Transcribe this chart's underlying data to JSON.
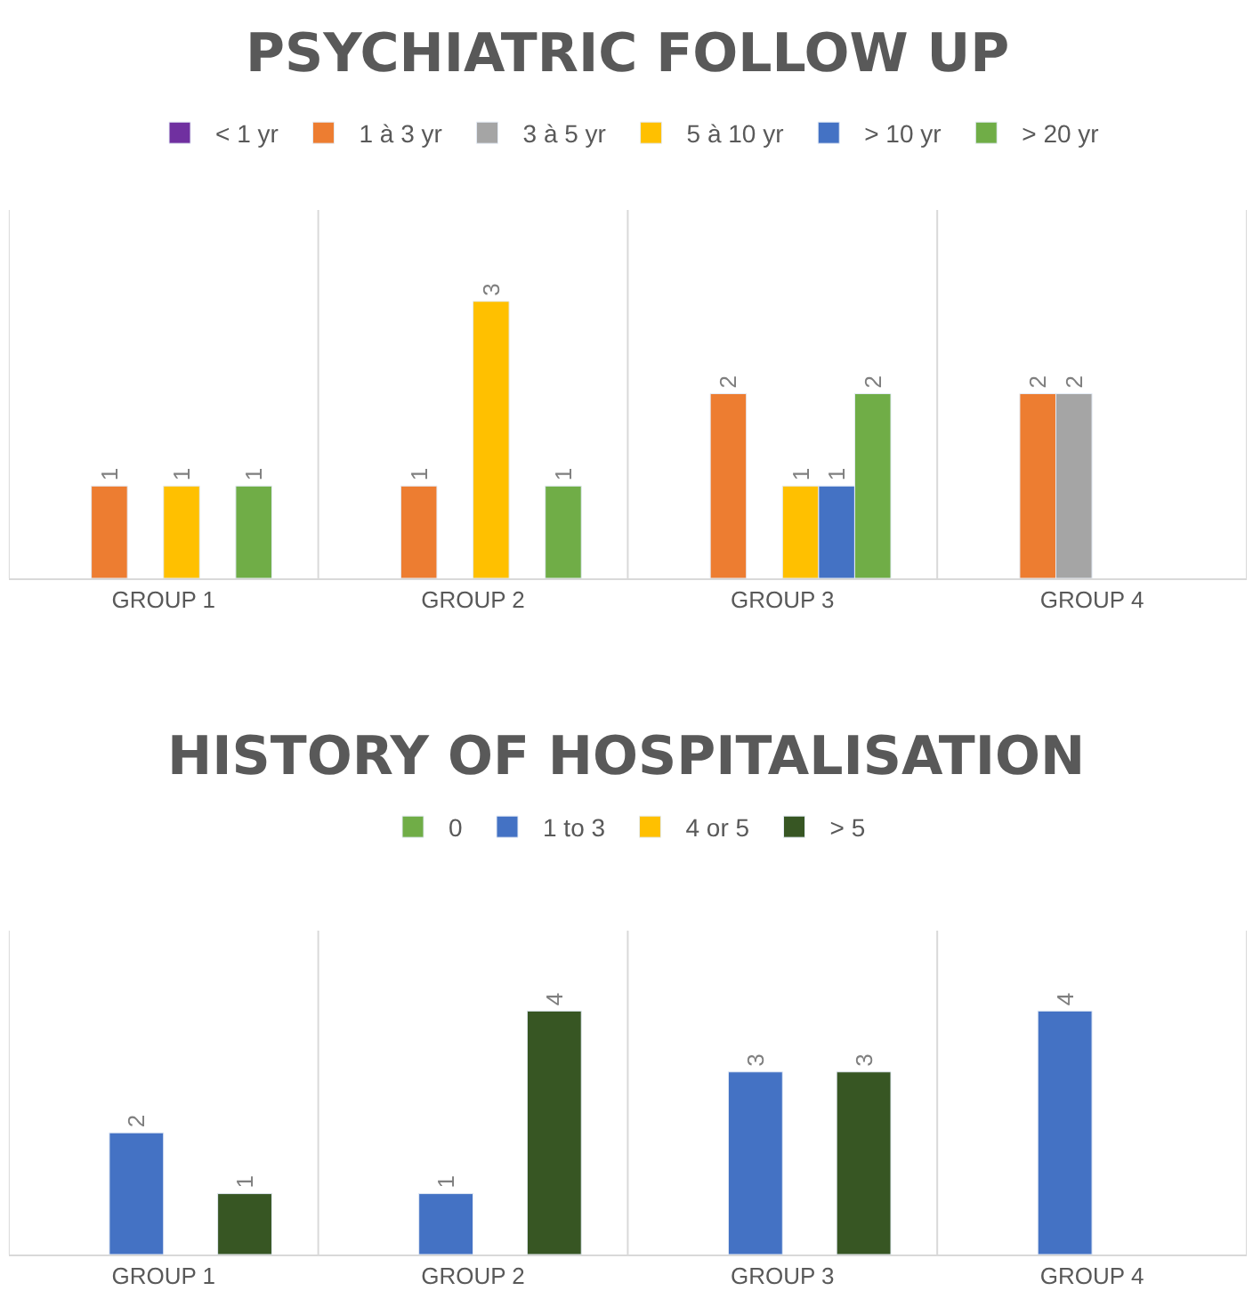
{
  "chart_data": [
    {
      "type": "bar",
      "title": "PSYCHIATRIC FOLLOW UP",
      "categories": [
        "GROUP 1",
        "GROUP 2",
        "GROUP 3",
        "GROUP 4"
      ],
      "data_labels": true,
      "grid": "x",
      "legend": "top",
      "series": [
        {
          "name": "< 1 yr",
          "color": "#7030a0",
          "values": [
            null,
            null,
            null,
            null
          ]
        },
        {
          "name": "1 à 3 yr",
          "color": "#ed7d31",
          "values": [
            1,
            1,
            2,
            2
          ]
        },
        {
          "name": "3 à 5 yr",
          "color": "#a5a5a5",
          "values": [
            null,
            null,
            null,
            2
          ]
        },
        {
          "name": "5 à 10 yr",
          "color": "#ffc000",
          "values": [
            1,
            3,
            1,
            null
          ]
        },
        {
          "name": "> 10 yr",
          "color": "#4472c4",
          "values": [
            null,
            null,
            1,
            null
          ]
        },
        {
          "name": "> 20 yr",
          "color": "#70ad47",
          "values": [
            1,
            1,
            2,
            null
          ]
        }
      ]
    },
    {
      "type": "bar",
      "title": "HISTORY OF HOSPITALISATION",
      "categories": [
        "GROUP 1",
        "GROUP 2",
        "GROUP 3",
        "GROUP 4"
      ],
      "data_labels": true,
      "grid": "x",
      "legend": "top",
      "series": [
        {
          "name": "0",
          "color": "#70ad47",
          "values": [
            null,
            null,
            null,
            null
          ]
        },
        {
          "name": "1 to 3",
          "color": "#4472c4",
          "values": [
            2,
            1,
            3,
            4
          ]
        },
        {
          "name": "4 or 5",
          "color": "#ffc000",
          "values": [
            null,
            null,
            null,
            null
          ]
        },
        {
          "name": "> 5",
          "color": "#375623",
          "values": [
            1,
            4,
            3,
            null
          ]
        }
      ]
    }
  ]
}
